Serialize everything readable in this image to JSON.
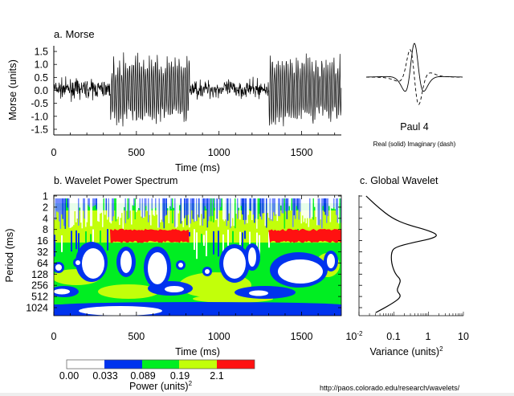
{
  "colors": {
    "white": "#ffffff",
    "blue": "#0033ee",
    "green": "#00ee22",
    "yellow": "#c2ff0a",
    "red": "#ff1111",
    "line": "#000000"
  },
  "chart_data": [
    {
      "type": "line",
      "title": "a. Morse",
      "xlabel": "Time (ms)",
      "ylabel": "Morse (units)",
      "xlim": [
        0,
        1740
      ],
      "ylim": [
        -1.7,
        1.7
      ],
      "xticks": [
        "0",
        "500",
        "1000",
        "1500"
      ],
      "yticks": [
        "1.5",
        "1.0",
        "0.5",
        "0.0",
        "-0.5",
        "-1.0",
        "-1.5"
      ],
      "segments": [
        {
          "start_ms": 0,
          "end_ms": 340,
          "kind": "noise",
          "amplitude": 0.3
        },
        {
          "start_ms": 340,
          "end_ms": 820,
          "kind": "oscillation",
          "period_ms": 12,
          "amplitude": 1.2
        },
        {
          "start_ms": 820,
          "end_ms": 1300,
          "kind": "noise",
          "amplitude": 0.3
        },
        {
          "start_ms": 1300,
          "end_ms": 1740,
          "kind": "oscillation",
          "period_ms": 12,
          "amplitude": 1.2
        }
      ]
    },
    {
      "type": "line",
      "title": "Paul 4",
      "caption": "Real (solid)  Imaginary (dash)",
      "series": [
        {
          "name": "Real",
          "style": "solid"
        },
        {
          "name": "Imaginary",
          "style": "dash"
        }
      ]
    },
    {
      "type": "heatmap",
      "title": "b. Wavelet Power Spectrum",
      "xlabel": "Time (ms)",
      "ylabel": "Period (ms)",
      "xlim": [
        0,
        1740
      ],
      "xticks": [
        "0",
        "500",
        "1000",
        "1500"
      ],
      "yticks": [
        "1",
        "2",
        "4",
        "8",
        "16",
        "32",
        "64",
        "128",
        "256",
        "512",
        "1024"
      ],
      "high_power_bands": [
        {
          "period_range": [
            8,
            16
          ],
          "time_range": [
            340,
            820
          ],
          "level": "> 2.1"
        },
        {
          "period_range": [
            8,
            16
          ],
          "time_range": [
            1300,
            1740
          ],
          "level": "> 2.1"
        }
      ]
    },
    {
      "type": "line",
      "title": "c. Global Wavelet",
      "xlabel": "Variance (units)",
      "xlabel_sup": "2",
      "xscale": "log",
      "xlim": [
        0.01,
        10
      ],
      "xticks": [
        {
          "base": "10",
          "exp": "-2"
        },
        {
          "label": "0.1"
        },
        {
          "label": "1"
        },
        {
          "label": "10"
        }
      ],
      "period": [
        1,
        2,
        4,
        6,
        8,
        11,
        14,
        18,
        24,
        32,
        64,
        128,
        180,
        256,
        360,
        512,
        800,
        1400
      ],
      "variance": [
        0.016,
        0.035,
        0.09,
        0.25,
        0.8,
        1.9,
        1.3,
        0.35,
        0.11,
        0.085,
        0.085,
        0.11,
        0.16,
        0.14,
        0.12,
        0.17,
        0.09,
        0.03
      ]
    }
  ],
  "colorbar": {
    "levels": [
      "0.00",
      "0.033",
      "0.089",
      "0.19",
      "2.1"
    ],
    "label": "Power (units)",
    "label_sup": "2"
  },
  "footer": {
    "url": "http://paos.colorado.edu/research/wavelets/"
  }
}
